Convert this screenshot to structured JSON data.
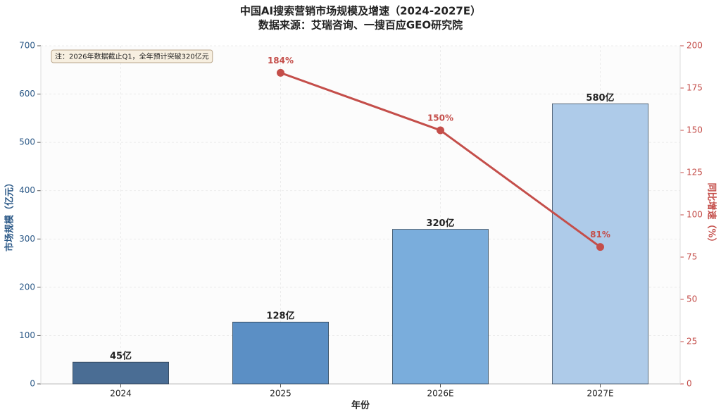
{
  "chart_data": {
    "type": "combo",
    "title": "中国AI搜索营销市场规模及增速（2024-2027E）",
    "subtitle": "数据来源：艾瑞咨询、一搜百应GEO研究院",
    "annotation": "注：2026年数据截止Q1，全年预计突破320亿元",
    "x_label": "年份",
    "y_label": "市场规模（亿元）",
    "y2_label": "同比增速（%）",
    "categories": [
      "2024",
      "2025",
      "2026E",
      "2027E"
    ],
    "series": [
      {
        "type": "bar",
        "colors": [
          "#4a6d94",
          "#5b8fc5",
          "#7aaddc",
          "#aecbe9"
        ],
        "values": [
          45,
          128,
          320,
          580
        ],
        "value_labels": [
          "45亿",
          "128亿",
          "320亿",
          "580亿"
        ]
      },
      {
        "type": "line",
        "axis": "y2",
        "color": "#c44e4a",
        "values": [
          null,
          184,
          150,
          81
        ],
        "value_labels": [
          null,
          "184%",
          "150%",
          "81%"
        ]
      }
    ],
    "ylim": [
      0,
      700
    ],
    "yticks": [
      0,
      100,
      200,
      300,
      400,
      500,
      600,
      700
    ],
    "y2lim": [
      0,
      200
    ],
    "y2ticks": [
      0,
      25,
      50,
      75,
      100,
      125,
      150,
      175,
      200
    ],
    "y_color": "#2d5a88",
    "y2_color": "#c44e4a",
    "grid": true
  }
}
